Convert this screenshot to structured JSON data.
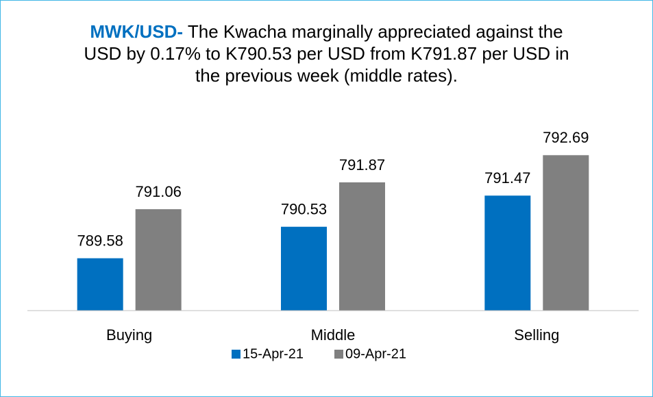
{
  "chart_data": {
    "type": "bar",
    "title_highlight": "MWK/USD-",
    "title": "The Kwacha marginally appreciated against the USD by 0.17% to K790.53 per USD from K791.87 per USD in the previous week (middle rates).",
    "categories": [
      "Buying",
      "Middle",
      "Selling"
    ],
    "series": [
      {
        "name": "15-Apr-21",
        "color": "#0070c0",
        "values": [
          789.58,
          790.53,
          791.47
        ]
      },
      {
        "name": "09-Apr-21",
        "color": "#808080",
        "values": [
          791.06,
          791.87,
          792.69
        ]
      }
    ],
    "ylim": [
      788,
      794
    ],
    "legend": "bottom"
  }
}
